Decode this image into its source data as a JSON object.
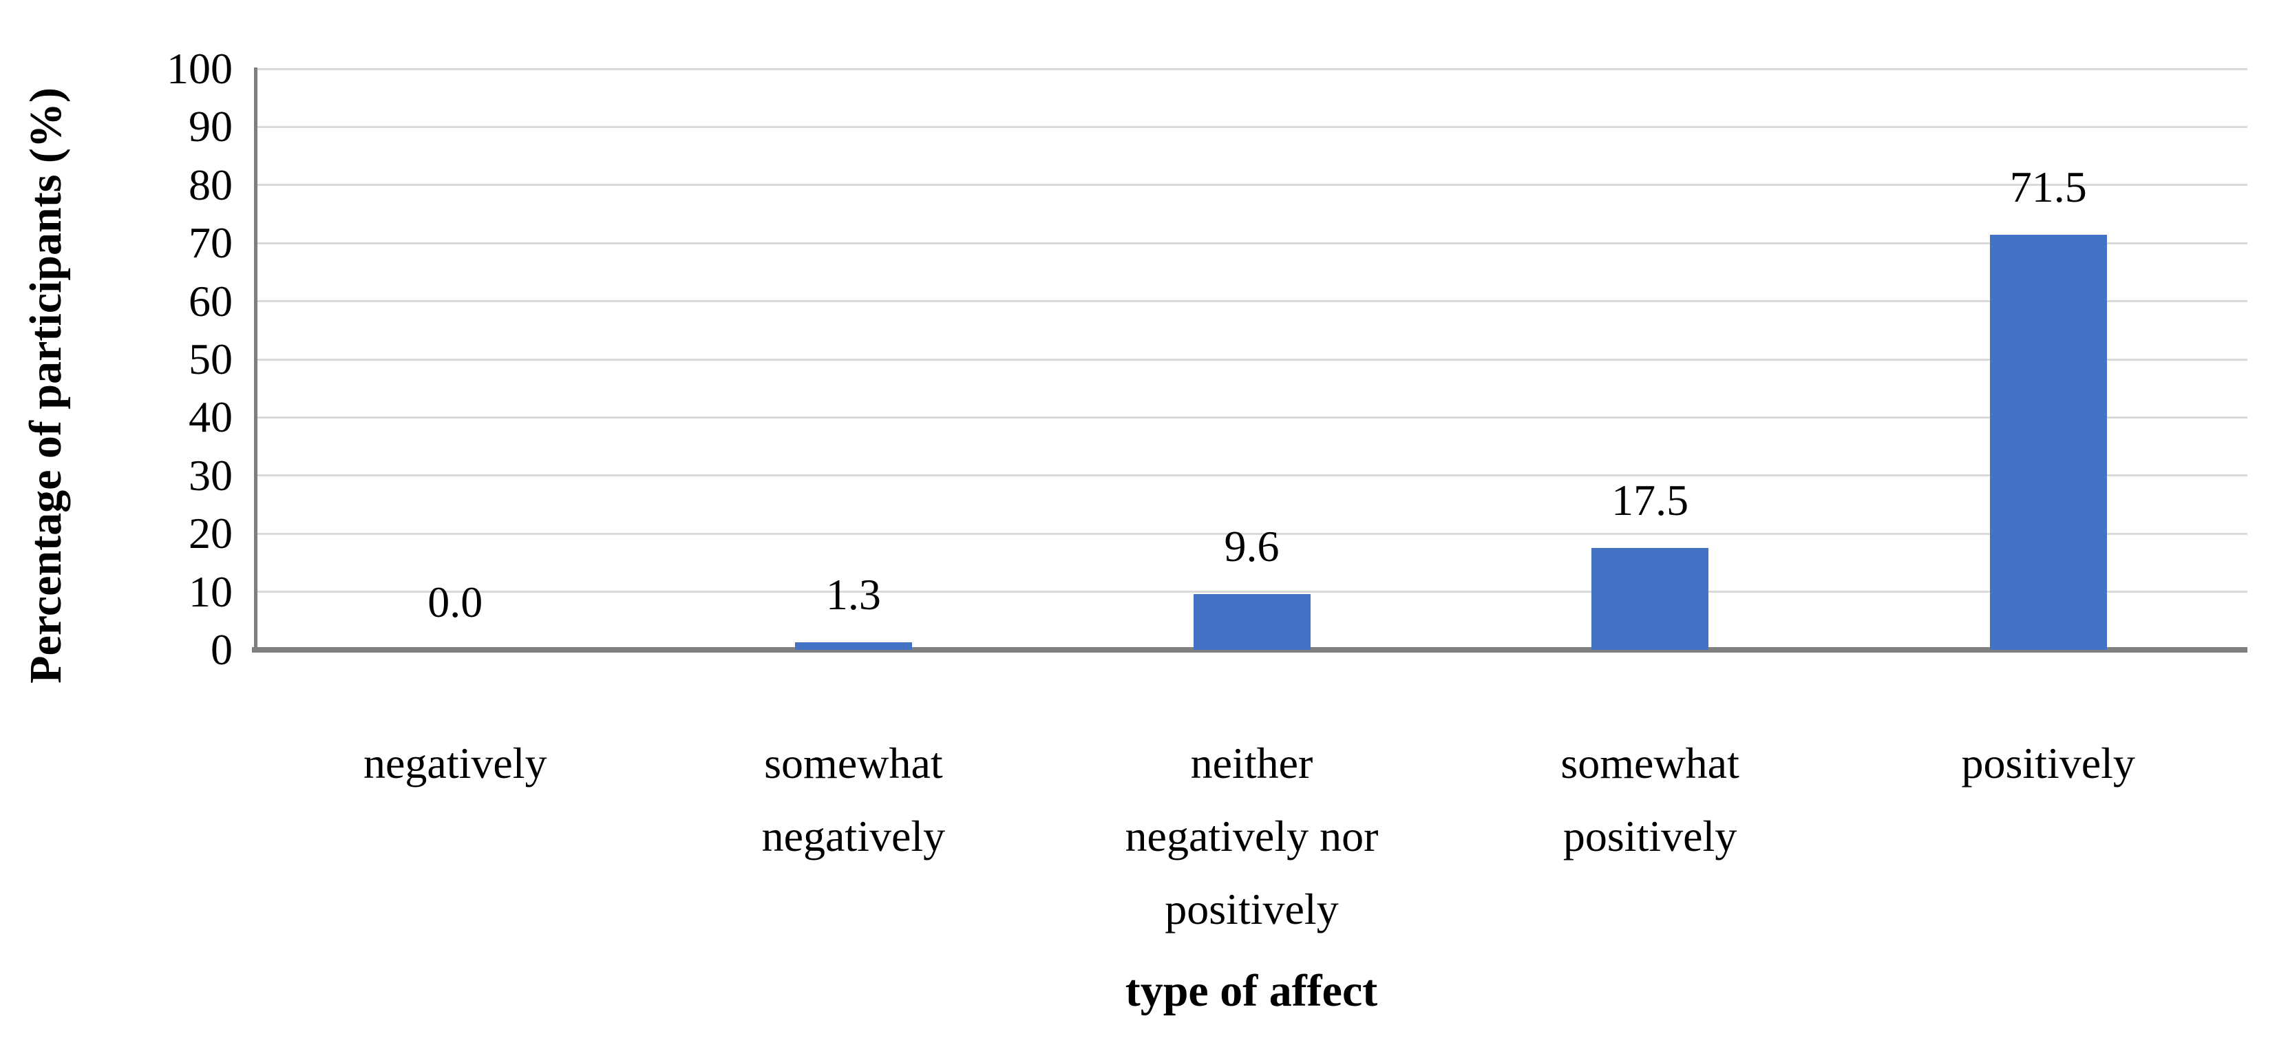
{
  "chart_data": {
    "type": "bar",
    "title": "",
    "categories": [
      "negatively",
      "somewhat negatively",
      "neither negatively nor positively",
      "somewhat positively",
      "positively"
    ],
    "category_label_lines": [
      [
        "negatively"
      ],
      [
        "somewhat",
        "negatively"
      ],
      [
        "neither",
        "negatively nor",
        "positively"
      ],
      [
        "somewhat",
        "positively"
      ],
      [
        "positively"
      ]
    ],
    "values": [
      0.0,
      1.3,
      9.6,
      17.5,
      71.5
    ],
    "data_labels": [
      "0.0",
      "1.3",
      "9.6",
      "17.5",
      "71.5"
    ],
    "xlabel": "type of affect",
    "ylabel": "Percentage of participants (%)",
    "ylim": [
      0,
      100
    ],
    "ytick_step": 10,
    "ytick_labels": [
      "0",
      "10",
      "20",
      "30",
      "40",
      "50",
      "60",
      "70",
      "80",
      "90",
      "100"
    ],
    "grid": true,
    "legend": false,
    "bar_color": "#4472C4",
    "gridline_color": "#D9D9D9",
    "axis_line_color": "#7F7F7F"
  }
}
